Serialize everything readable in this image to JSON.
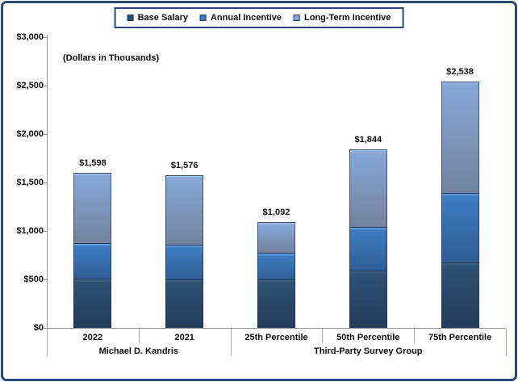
{
  "window": {
    "background_color": "#FFFFFF",
    "frame_border_color": "#27497B"
  },
  "chart_data": {
    "type": "bar",
    "stacked": true,
    "title": "",
    "note": "(Dollars in Thousands)",
    "legend_position": "top",
    "gridlines": false,
    "ylim": [
      0,
      3000
    ],
    "ytick_step": 500,
    "ytick_labels": [
      "$0",
      "$500",
      "$1,000",
      "$1,500",
      "$2,000",
      "$2,500",
      "$3,000"
    ],
    "categories": [
      "2022",
      "2021",
      "25th Percentile",
      "50th Percentile",
      "75th Percentile"
    ],
    "groups": [
      {
        "label": "Michael D. Kandris",
        "from": 0,
        "to": 2
      },
      {
        "label": "Third-Party Survey Group",
        "from": 2,
        "to": 5
      }
    ],
    "series": [
      {
        "name": "Base Salary",
        "values": [
          510,
          500,
          500,
          590,
          675
        ],
        "swatch": "#264A73",
        "fill_top": "#44688F",
        "fill_from": "#2E5174",
        "fill_to": "#243C5C"
      },
      {
        "name": "Annual Incentive",
        "values": [
          365,
          355,
          275,
          450,
          715
        ],
        "swatch": "#3C7BC0",
        "fill_top": "#6FA3DB",
        "fill_from": "#3D7CC1",
        "fill_to": "#2F5E95"
      },
      {
        "name": "Long-Term Incentive",
        "values": [
          723,
          721,
          317,
          804,
          1148
        ],
        "swatch": "#87A9D6",
        "fill_top": "#A5C1E6",
        "fill_from": "#86A7D7",
        "fill_to": "#73839E"
      }
    ],
    "totals": [
      "$1,598",
      "$1,576",
      "$1,092",
      "$1,844",
      "$2,538"
    ],
    "axis_color": "#8F8F8F",
    "separator_color": "#A6A6A6",
    "label_color": "#0D0D0D"
  }
}
